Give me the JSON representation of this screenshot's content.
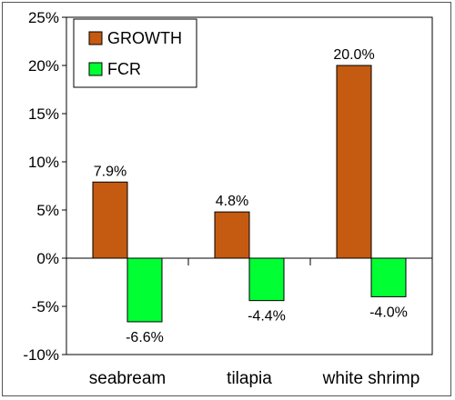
{
  "chart_data": {
    "type": "bar",
    "categories": [
      "seabream",
      "tilapia",
      "white shrimp"
    ],
    "series": [
      {
        "name": "GROWTH",
        "values": [
          7.9,
          4.8,
          20.0
        ],
        "labels": [
          "7.9%",
          "4.8%",
          "20.0%"
        ],
        "color": "#c55a11"
      },
      {
        "name": "FCR",
        "values": [
          -6.6,
          -4.4,
          -4.0
        ],
        "labels": [
          "-6.6%",
          "-4.4%",
          "-4.0%"
        ],
        "color": "#00ff33"
      }
    ],
    "ylim": [
      -10,
      25
    ],
    "yticks": [
      -10,
      -5,
      0,
      5,
      10,
      15,
      20,
      25
    ],
    "ytick_labels": [
      "-10%",
      "-5%",
      "0%",
      "5%",
      "10%",
      "15%",
      "20%",
      "25%"
    ],
    "grid": false,
    "legend": "top-left",
    "title": "",
    "xlabel": "",
    "ylabel": ""
  }
}
